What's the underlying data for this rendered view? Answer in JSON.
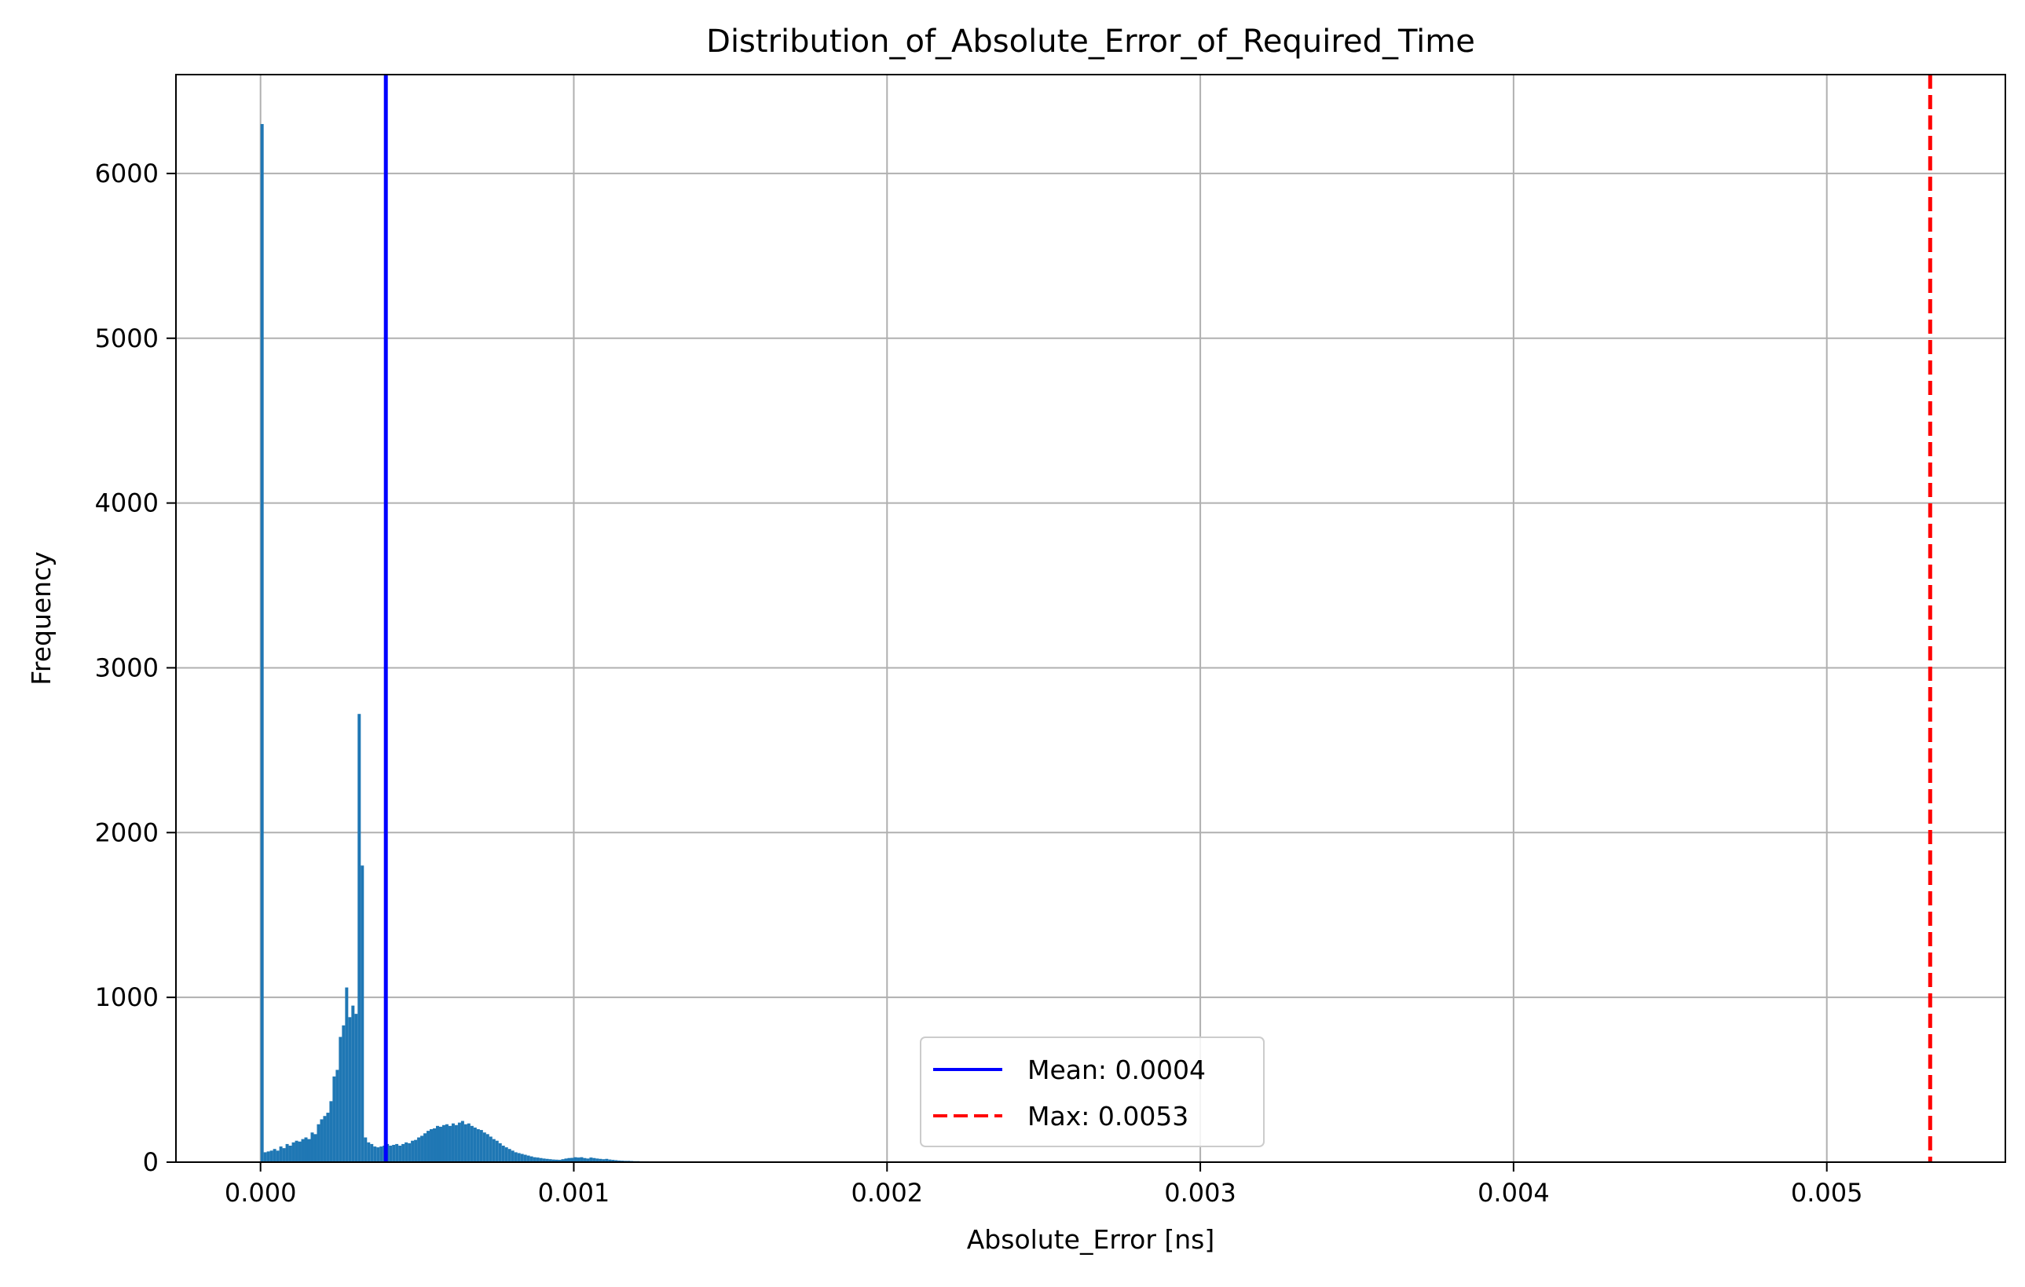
{
  "chart_data": {
    "type": "bar",
    "title": "Distribution_of_Absolute_Error_of_Required_Time",
    "xlabel": "Absolute_Error [ns]",
    "ylabel": "Frequency",
    "xlim": [
      -0.00027,
      0.00557
    ],
    "ylim": [
      0,
      6600
    ],
    "xticks": [
      0.0,
      0.001,
      0.002,
      0.003,
      0.004,
      0.005
    ],
    "xtick_labels": [
      "0.000",
      "0.001",
      "0.002",
      "0.003",
      "0.004",
      "0.005"
    ],
    "yticks": [
      0,
      1000,
      2000,
      3000,
      4000,
      5000,
      6000
    ],
    "ytick_labels": [
      "0",
      "1000",
      "2000",
      "3000",
      "4000",
      "5000",
      "6000"
    ],
    "grid": true,
    "bar_color": "#1f77b4",
    "histogram": {
      "bin_width": 1e-05,
      "bins": [
        [
          0.0,
          6300
        ],
        [
          1e-05,
          60
        ],
        [
          2e-05,
          65
        ],
        [
          3e-05,
          70
        ],
        [
          4e-05,
          80
        ],
        [
          5e-05,
          70
        ],
        [
          6e-05,
          95
        ],
        [
          7e-05,
          85
        ],
        [
          8e-05,
          110
        ],
        [
          9e-05,
          100
        ],
        [
          0.0001,
          120
        ],
        [
          0.00011,
          130
        ],
        [
          0.00012,
          125
        ],
        [
          0.00013,
          140
        ],
        [
          0.00014,
          150
        ],
        [
          0.00015,
          140
        ],
        [
          0.00016,
          180
        ],
        [
          0.00017,
          170
        ],
        [
          0.00018,
          230
        ],
        [
          0.00019,
          260
        ],
        [
          0.0002,
          280
        ],
        [
          0.00021,
          300
        ],
        [
          0.00022,
          370
        ],
        [
          0.00023,
          520
        ],
        [
          0.00024,
          560
        ],
        [
          0.00025,
          760
        ],
        [
          0.00026,
          830
        ],
        [
          0.00027,
          1060
        ],
        [
          0.00028,
          880
        ],
        [
          0.00029,
          950
        ],
        [
          0.0003,
          900
        ],
        [
          0.00031,
          2720
        ],
        [
          0.00032,
          1800
        ],
        [
          0.00033,
          150
        ],
        [
          0.00034,
          120
        ],
        [
          0.00035,
          110
        ],
        [
          0.00036,
          95
        ],
        [
          0.00037,
          90
        ],
        [
          0.00038,
          95
        ],
        [
          0.00039,
          100
        ],
        [
          0.0004,
          110
        ],
        [
          0.00041,
          100
        ],
        [
          0.00042,
          105
        ],
        [
          0.00043,
          110
        ],
        [
          0.00044,
          100
        ],
        [
          0.00045,
          110
        ],
        [
          0.00046,
          120
        ],
        [
          0.00047,
          115
        ],
        [
          0.00048,
          130
        ],
        [
          0.00049,
          135
        ],
        [
          0.0005,
          150
        ],
        [
          0.00051,
          160
        ],
        [
          0.00052,
          175
        ],
        [
          0.00053,
          190
        ],
        [
          0.00054,
          200
        ],
        [
          0.00055,
          205
        ],
        [
          0.00056,
          220
        ],
        [
          0.00057,
          215
        ],
        [
          0.00058,
          225
        ],
        [
          0.00059,
          230
        ],
        [
          0.0006,
          220
        ],
        [
          0.00061,
          235
        ],
        [
          0.00062,
          225
        ],
        [
          0.00063,
          240
        ],
        [
          0.00064,
          250
        ],
        [
          0.00065,
          230
        ],
        [
          0.00066,
          235
        ],
        [
          0.00067,
          220
        ],
        [
          0.00068,
          210
        ],
        [
          0.00069,
          200
        ],
        [
          0.0007,
          195
        ],
        [
          0.00071,
          180
        ],
        [
          0.00072,
          170
        ],
        [
          0.00073,
          155
        ],
        [
          0.00074,
          140
        ],
        [
          0.00075,
          130
        ],
        [
          0.00076,
          115
        ],
        [
          0.00077,
          100
        ],
        [
          0.00078,
          90
        ],
        [
          0.00079,
          80
        ],
        [
          0.0008,
          70
        ],
        [
          0.00081,
          60
        ],
        [
          0.00082,
          55
        ],
        [
          0.00083,
          50
        ],
        [
          0.00084,
          45
        ],
        [
          0.00085,
          40
        ],
        [
          0.00086,
          35
        ],
        [
          0.00087,
          30
        ],
        [
          0.00088,
          28
        ],
        [
          0.00089,
          25
        ],
        [
          0.0009,
          22
        ],
        [
          0.00091,
          20
        ],
        [
          0.00092,
          18
        ],
        [
          0.00093,
          16
        ],
        [
          0.00094,
          15
        ],
        [
          0.00095,
          14
        ],
        [
          0.00096,
          18
        ],
        [
          0.00097,
          22
        ],
        [
          0.00098,
          25
        ],
        [
          0.00099,
          26
        ],
        [
          0.001,
          30
        ],
        [
          0.00101,
          28
        ],
        [
          0.00102,
          30
        ],
        [
          0.00103,
          25
        ],
        [
          0.00104,
          22
        ],
        [
          0.00105,
          28
        ],
        [
          0.00106,
          25
        ],
        [
          0.00107,
          22
        ],
        [
          0.00108,
          20
        ],
        [
          0.00109,
          18
        ],
        [
          0.0011,
          20
        ],
        [
          0.00111,
          16
        ],
        [
          0.00112,
          14
        ],
        [
          0.00113,
          12
        ],
        [
          0.00114,
          10
        ],
        [
          0.00115,
          9
        ],
        [
          0.00116,
          8
        ],
        [
          0.00117,
          8
        ],
        [
          0.00118,
          7
        ],
        [
          0.00119,
          6
        ],
        [
          0.0012,
          6
        ],
        [
          0.00121,
          5
        ],
        [
          0.00122,
          5
        ],
        [
          0.00123,
          5
        ],
        [
          0.00124,
          4
        ],
        [
          0.00125,
          4
        ],
        [
          0.00126,
          4
        ],
        [
          0.00127,
          3
        ],
        [
          0.00128,
          3
        ],
        [
          0.00129,
          3
        ],
        [
          0.0013,
          3
        ],
        [
          0.00132,
          3
        ],
        [
          0.00134,
          2
        ],
        [
          0.00136,
          2
        ],
        [
          0.00138,
          2
        ],
        [
          0.0014,
          2
        ],
        [
          0.00145,
          2
        ],
        [
          0.0015,
          2
        ],
        [
          0.00155,
          1
        ],
        [
          0.0016,
          1
        ],
        [
          0.00165,
          1
        ],
        [
          0.0017,
          1
        ],
        [
          0.0018,
          1
        ],
        [
          0.0019,
          1
        ],
        [
          0.002,
          1
        ]
      ]
    },
    "lines": [
      {
        "name": "Mean: 0.0004",
        "x": 0.0004,
        "color": "#0000ff",
        "style": "solid"
      },
      {
        "name": "Max: 0.0053",
        "x": 0.00533,
        "color": "#ff0000",
        "style": "dashed"
      }
    ],
    "legend": {
      "placement": "lower-center",
      "entries": [
        "Mean: 0.0004",
        "Max: 0.0053"
      ]
    }
  }
}
